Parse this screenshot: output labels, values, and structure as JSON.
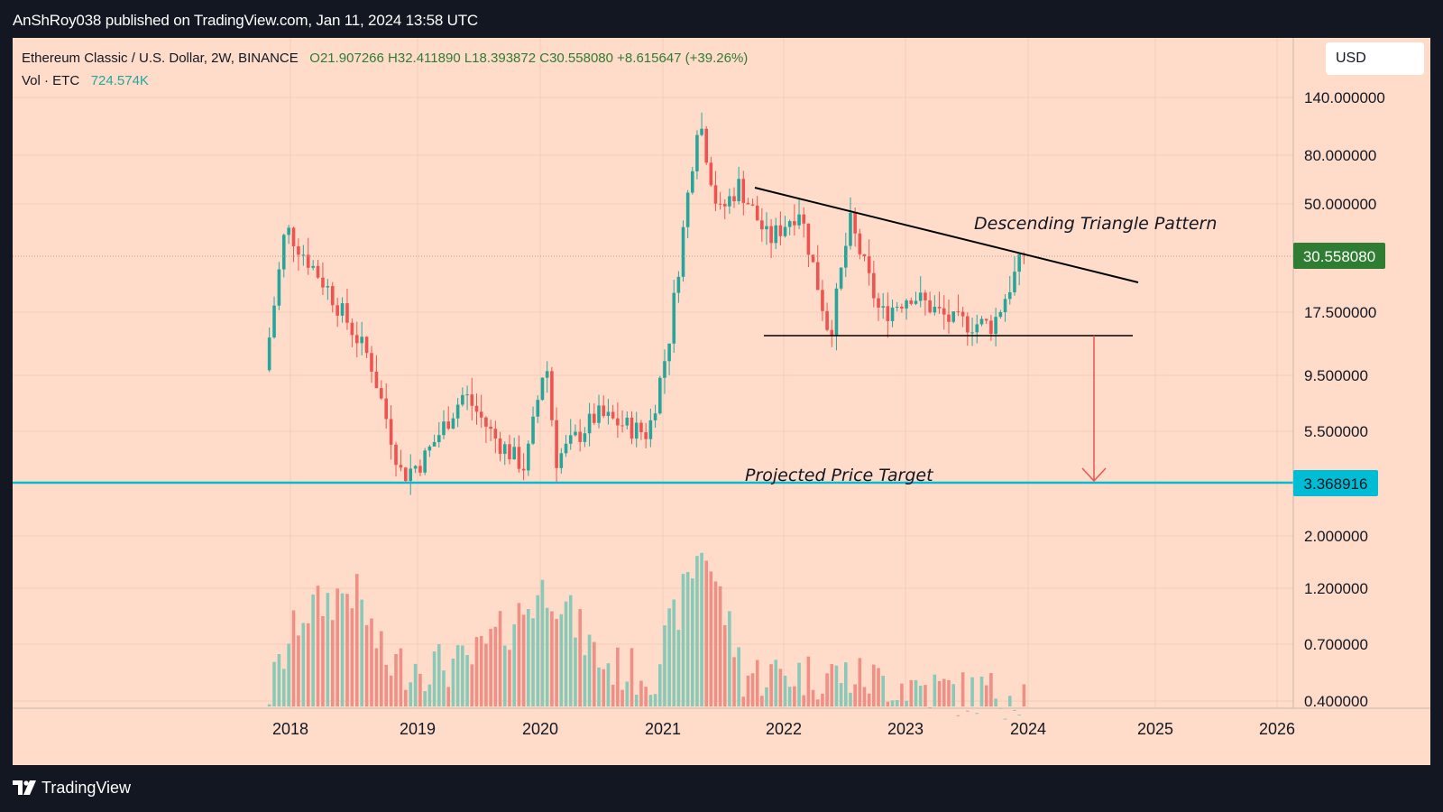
{
  "header": {
    "attribution": "AnShRoy038 published on TradingView.com, Jan 11, 2024 13:58 UTC"
  },
  "footer": {
    "brand": "TradingView"
  },
  "legend": {
    "symbol": "Ethereum Classic / U.S. Dollar, 2W, BINANCE",
    "open": "O21.907266",
    "high": "H32.411890",
    "low": "L18.393872",
    "close": "C30.558080",
    "change": "+8.615647 (+39.26%)",
    "volume_label": "Vol · ETC",
    "volume_value": "724.574K"
  },
  "price_axis": {
    "currency": "USD",
    "current_price_label": "30.558080",
    "target_price_label": "3.368916"
  },
  "annotations": {
    "pattern_label": "Descending Triangle Pattern",
    "target_label": "Projected Price Target"
  },
  "colors": {
    "background": "#ffdcca",
    "frame": "#131722",
    "up_candle": "#26a69a",
    "down_candle": "#ef5350",
    "up_volume": "#88c9b8",
    "down_volume": "#f08f86",
    "target_line": "#00bcd4",
    "current_price_badge": "#2e7d32",
    "projection_arrow": "#ef5350"
  },
  "chart_data": {
    "type": "candlestick",
    "timeframe": "2W",
    "scale": "log",
    "x_ticks": [
      "2018",
      "2019",
      "2020",
      "2021",
      "2022",
      "2023",
      "2024",
      "2025",
      "2026"
    ],
    "y_ticks": [
      "140.000000",
      "80.000000",
      "50.000000",
      "17.500000",
      "9.500000",
      "5.500000",
      "2.000000",
      "1.200000",
      "0.700000",
      "0.400000"
    ],
    "y_range": [
      0.4,
      180
    ],
    "current_price": 30.55808,
    "target_price": 3.368916,
    "price_anchors": [
      {
        "date": "2017-11",
        "price": 10
      },
      {
        "date": "2018-01",
        "price": 40
      },
      {
        "date": "2018-05",
        "price": 22
      },
      {
        "date": "2018-09",
        "price": 11
      },
      {
        "date": "2018-12",
        "price": 3.6
      },
      {
        "date": "2019-02",
        "price": 4.2
      },
      {
        "date": "2019-06",
        "price": 8
      },
      {
        "date": "2019-09",
        "price": 5.2
      },
      {
        "date": "2019-12",
        "price": 3.9
      },
      {
        "date": "2020-02",
        "price": 11.5
      },
      {
        "date": "2020-03",
        "price": 4.2
      },
      {
        "date": "2020-07",
        "price": 6.5
      },
      {
        "date": "2020-12",
        "price": 5.4
      },
      {
        "date": "2021-02",
        "price": 13
      },
      {
        "date": "2021-05",
        "price": 120
      },
      {
        "date": "2021-07",
        "price": 45
      },
      {
        "date": "2021-09",
        "price": 60
      },
      {
        "date": "2021-12",
        "price": 35
      },
      {
        "date": "2022-03",
        "price": 48
      },
      {
        "date": "2022-06",
        "price": 14
      },
      {
        "date": "2022-08",
        "price": 42
      },
      {
        "date": "2022-11",
        "price": 17
      },
      {
        "date": "2023-02",
        "price": 21
      },
      {
        "date": "2023-06",
        "price": 16
      },
      {
        "date": "2023-10",
        "price": 15.5
      },
      {
        "date": "2024-01",
        "price": 30.5
      }
    ],
    "volume_anchors": [
      {
        "date": "2017-11",
        "volume": 0.42
      },
      {
        "date": "2018-02",
        "volume": 0.9
      },
      {
        "date": "2018-07",
        "volume": 1.15
      },
      {
        "date": "2018-10",
        "volume": 0.55
      },
      {
        "date": "2019-06",
        "volume": 0.55
      },
      {
        "date": "2020-02",
        "volume": 1.2
      },
      {
        "date": "2020-07",
        "volume": 0.55
      },
      {
        "date": "2020-12",
        "volume": 0.5
      },
      {
        "date": "2021-05",
        "volume": 1.8
      },
      {
        "date": "2021-09",
        "volume": 0.5
      },
      {
        "date": "2022-06",
        "volume": 0.5
      },
      {
        "date": "2023-06",
        "volume": 0.42
      },
      {
        "date": "2024-01",
        "volume": 0.42
      }
    ],
    "resistance_line": [
      {
        "date": "2021-10",
        "price": 60
      },
      {
        "date": "2024-10",
        "price": 25
      }
    ],
    "support_line": [
      {
        "date": "2021-10",
        "price": 14
      },
      {
        "date": "2024-09",
        "price": 14
      }
    ],
    "projection_arrow": {
      "date": "2024-07",
      "from": 14,
      "to": 3.368916
    }
  }
}
